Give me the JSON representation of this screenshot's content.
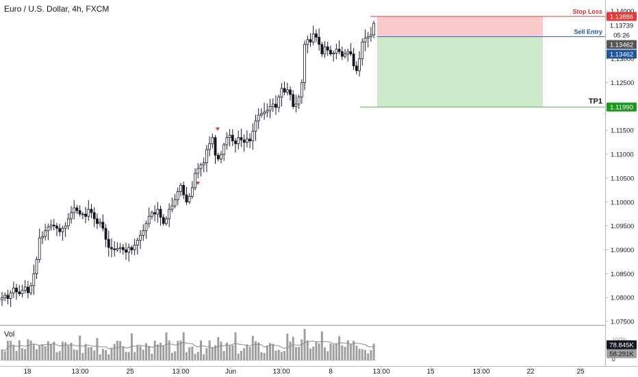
{
  "header": {
    "title": "Euro / U.S. Dollar, 4h, FXCM"
  },
  "price_axis": {
    "ticks": [
      "1.14000",
      "1.13500",
      "1.13000",
      "1.12500",
      "1.12000",
      "1.11500",
      "1.11000",
      "1.10500",
      "1.10000",
      "1.09500",
      "1.09000",
      "1.08500",
      "1.08000",
      "1.07500"
    ],
    "countdown": "05:26",
    "badges": {
      "stop_loss": "1.13886",
      "last_price": "1.13739",
      "close": "1.13462",
      "entry": "1.13462",
      "tp": "1.11990"
    }
  },
  "time_axis": {
    "labels": [
      "18",
      "13:00",
      "25",
      "13:00",
      "Jun",
      "13:00",
      "8",
      "13:00",
      "15",
      "13:00",
      "22",
      "25"
    ]
  },
  "position": {
    "stop_label": "Stop Loss",
    "entry_label": "Sell Entry",
    "tp_label": "TP1",
    "stop_price": 1.13886,
    "entry_price": 1.13462,
    "tp_price": 1.1199
  },
  "volume": {
    "label": "Vol",
    "badge_volume": "78.845K",
    "badge_ma": "58.291K",
    "axis_labels": [
      "100%",
      "0"
    ]
  },
  "colors": {
    "up": "#ffffff",
    "down": "#131722",
    "wick": "#131722",
    "stop_zone": "#fbcbcb",
    "target_zone": "#cce9cc",
    "stop_line": "#e53935",
    "entry_line": "#2962ff",
    "tp_line": "#4caf50",
    "badge_close": "#555555",
    "badge_entry": "#1e55a0",
    "badge_tp": "#1a9a1a",
    "volume_bar": "#9e9e9e",
    "signal_marker": "#e53935"
  },
  "chart_data": {
    "type": "candlestick",
    "symbol": "Euro / U.S. Dollar",
    "interval": "4h",
    "source": "FXCM",
    "ylim": [
      1.075,
      1.141
    ],
    "y_ticks": [
      1.14,
      1.135,
      1.13,
      1.125,
      1.12,
      1.115,
      1.11,
      1.105,
      1.1,
      1.095,
      1.09,
      1.085,
      1.08,
      1.075
    ],
    "x_labels": [
      "18",
      "13:00",
      "25",
      "13:00",
      "Jun",
      "13:00",
      "8",
      "13:00",
      "15",
      "13:00",
      "22",
      "25"
    ],
    "closes": [
      1.08,
      1.0805,
      1.0798,
      1.081,
      1.082,
      1.0812,
      1.0808,
      1.0815,
      1.0822,
      1.081,
      1.0825,
      1.085,
      1.088,
      1.0925,
      1.0928,
      1.094,
      1.0948,
      1.0952,
      1.095,
      1.0945,
      1.0938,
      1.0945,
      1.095,
      1.0965,
      1.0978,
      1.0988,
      1.0982,
      1.0975,
      1.0975,
      1.097,
      1.0985,
      1.0978,
      1.0965,
      1.0955,
      1.0958,
      1.0945,
      1.0922,
      1.0905,
      1.0902,
      1.09,
      1.0903,
      1.0905,
      1.09,
      1.0895,
      1.0905,
      1.09,
      1.091,
      1.092,
      1.093,
      1.094,
      1.0955,
      1.097,
      1.0978,
      1.0975,
      1.0985,
      1.0968,
      1.0955,
      1.0965,
      1.0985,
      1.0992,
      1.1005,
      1.1022,
      1.1035,
      1.1015,
      1.1,
      1.1012,
      1.103,
      1.106,
      1.107,
      1.1078,
      1.1082,
      1.111,
      1.1122,
      1.1135,
      1.1098,
      1.109,
      1.11,
      1.112,
      1.1135,
      1.114,
      1.1128,
      1.1122,
      1.1135,
      1.113,
      1.1125,
      1.1132,
      1.1128,
      1.1148,
      1.117,
      1.1182,
      1.1185,
      1.1188,
      1.1192,
      1.12,
      1.1205,
      1.1198,
      1.122,
      1.1238,
      1.123,
      1.1235,
      1.1225,
      1.12,
      1.1205,
      1.122,
      1.125,
      1.133,
      1.134,
      1.1335,
      1.1352,
      1.1345,
      1.133,
      1.131,
      1.1325,
      1.1318,
      1.131,
      1.1312,
      1.132,
      1.1315,
      1.1305,
      1.131,
      1.1315,
      1.131,
      1.1285,
      1.1275,
      1.13,
      1.1335,
      1.1343,
      1.1346,
      1.135,
      1.1374
    ]
  }
}
